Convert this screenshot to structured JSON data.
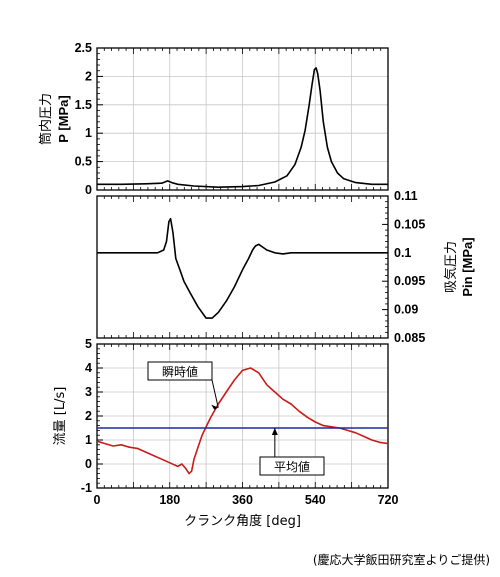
{
  "chart_data": [
    {
      "type": "line",
      "panel": "cylinder-pressure",
      "ylabel": "筒内圧力 P [MPa]",
      "ylabel_parts": {
        "jp": "筒内圧力",
        "sym": "P",
        "unit": "[MPa]"
      },
      "ylim": [
        0,
        2.5
      ],
      "yticks": [
        "0",
        "0.5",
        "1",
        "1.5",
        "2",
        "2.5"
      ],
      "xlim": [
        0,
        720
      ],
      "grid": true,
      "series": [
        {
          "color": "#000000",
          "x": [
            0,
            60,
            120,
            160,
            175,
            185,
            200,
            240,
            300,
            360,
            400,
            440,
            470,
            490,
            505,
            515,
            525,
            532,
            538,
            542,
            546,
            552,
            560,
            570,
            580,
            595,
            610,
            640,
            680,
            720
          ],
          "y": [
            0.1,
            0.1,
            0.11,
            0.12,
            0.16,
            0.13,
            0.1,
            0.07,
            0.05,
            0.06,
            0.08,
            0.14,
            0.25,
            0.45,
            0.75,
            1.05,
            1.5,
            1.85,
            2.12,
            2.15,
            2.05,
            1.75,
            1.2,
            0.75,
            0.5,
            0.3,
            0.2,
            0.13,
            0.1,
            0.1
          ]
        }
      ]
    },
    {
      "type": "line",
      "panel": "intake-pressure",
      "ylabel": "吸気圧力 Pin [MPa]",
      "ylabel_parts": {
        "jp": "吸気圧力",
        "sym": "P",
        "sub": "in",
        "unit": "[MPa]"
      },
      "ylim": [
        0.085,
        0.11
      ],
      "yticks": [
        "0.085",
        "0.09",
        "0.095",
        "0.1",
        "0.105",
        "0.11"
      ],
      "y_axis_side": "right",
      "xlim": [
        0,
        720
      ],
      "grid": false,
      "series": [
        {
          "color": "#000000",
          "x": [
            0,
            120,
            150,
            165,
            172,
            178,
            182,
            188,
            195,
            205,
            215,
            230,
            250,
            270,
            285,
            300,
            320,
            340,
            360,
            375,
            385,
            392,
            400,
            410,
            420,
            440,
            460,
            480,
            500,
            520,
            560,
            620,
            720
          ],
          "y": [
            0.1,
            0.1,
            0.1,
            0.1005,
            0.102,
            0.1055,
            0.106,
            0.1035,
            0.099,
            0.097,
            0.095,
            0.093,
            0.0905,
            0.0885,
            0.0885,
            0.0895,
            0.0915,
            0.094,
            0.097,
            0.099,
            0.1005,
            0.1012,
            0.1015,
            0.101,
            0.1005,
            0.1,
            0.0998,
            0.1,
            0.1,
            0.1,
            0.1,
            0.1,
            0.1
          ]
        }
      ]
    },
    {
      "type": "line",
      "panel": "flow-rate",
      "ylabel": "流量 [L/s]",
      "ylabel_parts": {
        "jp": "流量",
        "unit": "[L/s]"
      },
      "ylim": [
        -1,
        5
      ],
      "yticks": [
        "-1",
        "0",
        "1",
        "2",
        "3",
        "4",
        "5"
      ],
      "xlabel": "クランク角度 [deg]",
      "xlabel_parts": {
        "jp": "クランク角度",
        "unit": "[deg]"
      },
      "xlim": [
        0,
        720
      ],
      "xticks": [
        "0",
        "180",
        "360",
        "540",
        "720"
      ],
      "grid": true,
      "series": [
        {
          "name": "瞬時値",
          "color": "#cc1a1a",
          "x": [
            0,
            20,
            40,
            60,
            80,
            100,
            120,
            140,
            160,
            180,
            200,
            210,
            220,
            228,
            234,
            240,
            250,
            260,
            280,
            300,
            320,
            340,
            360,
            380,
            400,
            420,
            440,
            460,
            480,
            500,
            520,
            540,
            560,
            580,
            600,
            620,
            640,
            660,
            680,
            700,
            720
          ],
          "y": [
            0.95,
            0.85,
            0.75,
            0.8,
            0.7,
            0.65,
            0.5,
            0.35,
            0.2,
            0.05,
            -0.1,
            0.0,
            -0.2,
            -0.4,
            -0.3,
            0.2,
            0.7,
            1.2,
            1.9,
            2.5,
            3.0,
            3.5,
            3.9,
            4.0,
            3.8,
            3.3,
            3.0,
            2.7,
            2.5,
            2.2,
            1.95,
            1.75,
            1.6,
            1.55,
            1.5,
            1.4,
            1.3,
            1.15,
            1.0,
            0.9,
            0.85
          ]
        },
        {
          "name": "平均値",
          "color": "#1a2aa0",
          "x": [
            0,
            720
          ],
          "y": [
            1.5,
            1.5
          ]
        }
      ],
      "annotations": [
        {
          "text": "瞬時値",
          "target_x": 300,
          "target_y": 2.35
        },
        {
          "text": "平均値",
          "target_x": 440,
          "target_y": 1.5
        }
      ]
    }
  ],
  "credit": "(慶応大学飯田研究室よりご提供)"
}
